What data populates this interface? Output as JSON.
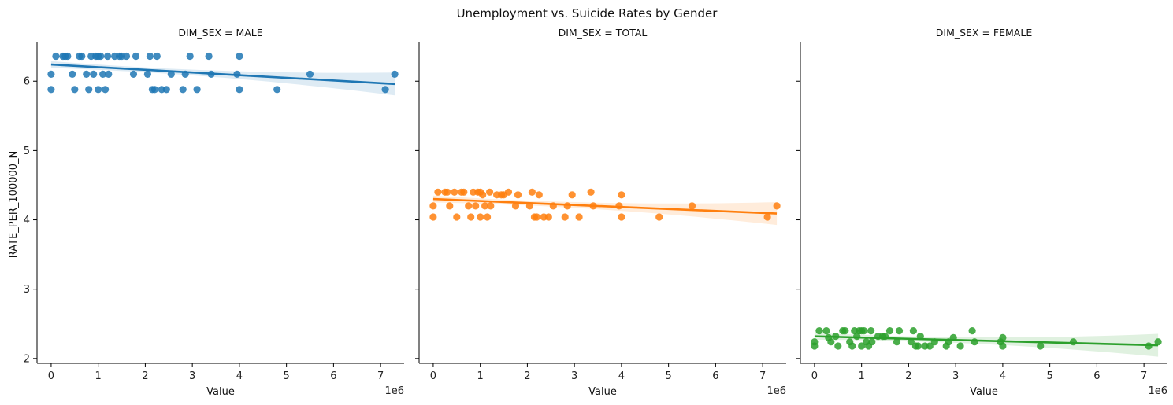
{
  "chart_data": {
    "type": "scatter",
    "title": "Unemployment vs. Suicide Rates by Gender",
    "ylabel": "RATE_PER_100000_N",
    "xlabel": "Value",
    "x_offset_label": "1e6",
    "xlim": [
      -300000,
      7500000
    ],
    "ylim": [
      1.93,
      6.57
    ],
    "x_ticks": [
      0,
      1000000,
      2000000,
      3000000,
      4000000,
      5000000,
      6000000,
      7000000
    ],
    "x_tick_labels": [
      "0",
      "1",
      "2",
      "3",
      "4",
      "5",
      "6",
      "7"
    ],
    "y_ticks": [
      2,
      3,
      4,
      5,
      6
    ],
    "y_tick_labels": [
      "2",
      "3",
      "4",
      "5",
      "6"
    ],
    "x": [
      0,
      0,
      100000,
      250000,
      300000,
      350000,
      450000,
      500000,
      600000,
      650000,
      750000,
      800000,
      850000,
      900000,
      950000,
      1000000,
      1000000,
      1050000,
      1100000,
      1150000,
      1200000,
      1220000,
      1350000,
      1450000,
      1500000,
      1600000,
      1750000,
      1800000,
      2050000,
      2100000,
      2150000,
      2200000,
      2250000,
      2350000,
      2450000,
      2550000,
      2800000,
      2850000,
      2950000,
      3100000,
      3350000,
      3400000,
      3950000,
      4000000,
      4000000,
      4800000,
      5500000,
      7100000,
      7300000
    ],
    "panels": [
      {
        "title": "DIM_SEX = MALE",
        "color": "#1f77b4",
        "y": [
          5.88,
          6.1,
          6.36,
          6.36,
          6.36,
          6.36,
          6.1,
          5.88,
          6.36,
          6.36,
          6.1,
          5.88,
          6.36,
          6.1,
          6.36,
          5.88,
          6.36,
          6.36,
          6.1,
          5.88,
          6.36,
          6.1,
          6.36,
          6.36,
          6.36,
          6.36,
          6.1,
          6.36,
          6.1,
          6.36,
          5.88,
          5.88,
          6.36,
          5.88,
          5.88,
          6.1,
          5.88,
          6.1,
          6.36,
          5.88,
          6.36,
          6.1,
          6.1,
          6.36,
          5.88,
          5.88,
          6.1,
          5.88,
          6.1
        ],
        "fit": {
          "x": [
            0,
            7300000
          ],
          "y": [
            6.24,
            5.96
          ]
        }
      },
      {
        "title": "DIM_SEX = TOTAL",
        "color": "#ff7f0e",
        "y": [
          4.04,
          4.2,
          4.4,
          4.4,
          4.4,
          4.2,
          4.4,
          4.04,
          4.4,
          4.4,
          4.2,
          4.04,
          4.4,
          4.2,
          4.4,
          4.04,
          4.4,
          4.36,
          4.2,
          4.04,
          4.4,
          4.2,
          4.36,
          4.36,
          4.36,
          4.4,
          4.2,
          4.36,
          4.2,
          4.4,
          4.04,
          4.04,
          4.36,
          4.04,
          4.04,
          4.2,
          4.04,
          4.2,
          4.36,
          4.04,
          4.4,
          4.2,
          4.2,
          4.36,
          4.04,
          4.04,
          4.2,
          4.04,
          4.2
        ],
        "fit": {
          "x": [
            0,
            7300000
          ],
          "y": [
            4.3,
            4.09
          ]
        }
      },
      {
        "title": "DIM_SEX = FEMALE",
        "color": "#2ca02c",
        "y": [
          2.18,
          2.24,
          2.4,
          2.4,
          2.3,
          2.24,
          2.32,
          2.18,
          2.4,
          2.4,
          2.24,
          2.18,
          2.4,
          2.32,
          2.4,
          2.18,
          2.4,
          2.4,
          2.24,
          2.18,
          2.4,
          2.24,
          2.32,
          2.32,
          2.32,
          2.4,
          2.24,
          2.4,
          2.24,
          2.4,
          2.18,
          2.18,
          2.32,
          2.18,
          2.18,
          2.24,
          2.18,
          2.24,
          2.3,
          2.18,
          2.4,
          2.24,
          2.24,
          2.3,
          2.18,
          2.18,
          2.24,
          2.18,
          2.24
        ],
        "fit": {
          "x": [
            0,
            7300000
          ],
          "y": [
            2.32,
            2.19
          ]
        }
      }
    ]
  }
}
